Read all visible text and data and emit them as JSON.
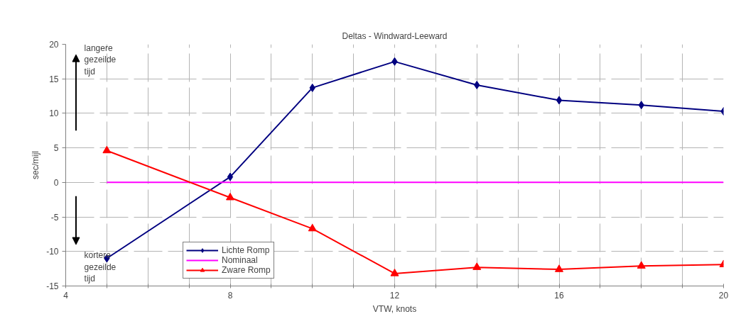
{
  "chart_data": {
    "type": "line",
    "title": "Deltas - Windward-Leeward",
    "xlabel": "VTW, knots",
    "ylabel": "sec/mijl",
    "x": [
      5,
      8,
      10,
      12,
      14,
      16,
      18,
      20
    ],
    "series": [
      {
        "name": "Lichte Romp",
        "color": "#000080",
        "marker": "diamond",
        "values": [
          -11,
          0.8,
          13.7,
          17.5,
          14.1,
          11.9,
          11.2,
          10.3
        ]
      },
      {
        "name": "Nominaal",
        "color": "#ff00ff",
        "marker": "none",
        "values": [
          0,
          0,
          0,
          0,
          0,
          0,
          0,
          0
        ]
      },
      {
        "name": "Zware Romp",
        "color": "#ff0000",
        "marker": "triangle",
        "values": [
          4.6,
          -2.2,
          -6.7,
          -13.2,
          -12.3,
          -12.6,
          -12.1,
          -11.9
        ]
      }
    ],
    "xlim": [
      4,
      20
    ],
    "ylim": [
      -15,
      20
    ],
    "xticks": [
      4,
      {
        "value": 5,
        "label": null
      },
      {
        "value": 6,
        "label": null
      },
      {
        "value": 7,
        "label": null
      },
      8,
      {
        "value": 9,
        "label": null
      },
      {
        "value": 10,
        "label": null
      },
      {
        "value": 11,
        "label": null
      },
      12,
      {
        "value": 13,
        "label": null
      },
      {
        "value": 14,
        "label": null
      },
      {
        "value": 15,
        "label": null
      },
      16,
      {
        "value": 17,
        "label": null
      },
      {
        "value": 18,
        "label": null
      },
      {
        "value": 19,
        "label": null
      },
      20
    ],
    "yticks": [
      -15,
      -10,
      -5,
      0,
      5,
      10,
      15,
      20
    ],
    "grid": true,
    "legend": "bottom left",
    "line_style": "solid",
    "annotations": [
      "langere gezeilde tijd",
      "kortere gezeilde tijd"
    ]
  }
}
